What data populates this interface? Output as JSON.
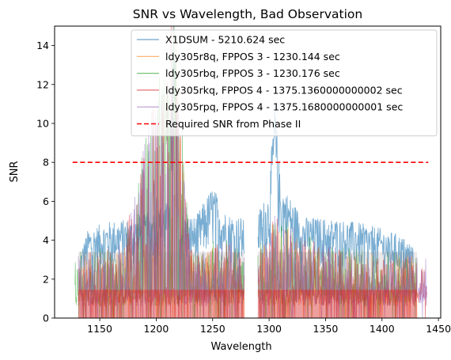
{
  "chart_data": {
    "type": "line",
    "title": "SNR vs Wavelength, Bad Observation",
    "xlabel": "Wavelength",
    "ylabel": "SNR",
    "xlim": [
      1110,
      1452
    ],
    "ylim": [
      0,
      15
    ],
    "xticks": [
      1150,
      1200,
      1250,
      1300,
      1350,
      1400,
      1450
    ],
    "yticks": [
      0,
      2,
      4,
      6,
      8,
      10,
      12,
      14
    ],
    "legend_position": "top-right",
    "gap": [
      1278,
      1290
    ],
    "series": [
      {
        "name": "X1DSUM - 5210.624 sec",
        "color": "#1f77b4",
        "x_range": [
          1133,
          1428
        ],
        "envelope": [
          [
            1133,
            3.5
          ],
          [
            1140,
            4.6
          ],
          [
            1160,
            5.0
          ],
          [
            1180,
            5.1
          ],
          [
            1200,
            5.6
          ],
          [
            1210,
            6.0
          ],
          [
            1216,
            15
          ],
          [
            1220,
            5.4
          ],
          [
            1235,
            5.2
          ],
          [
            1250,
            6.8
          ],
          [
            1262,
            5.4
          ],
          [
            1275,
            5.2
          ],
          [
            1278,
            5.0
          ],
          [
            1290,
            5.5
          ],
          [
            1300,
            6.5
          ],
          [
            1305,
            11.5
          ],
          [
            1310,
            7.0
          ],
          [
            1330,
            5.2
          ],
          [
            1360,
            5.1
          ],
          [
            1380,
            4.9
          ],
          [
            1400,
            4.6
          ],
          [
            1415,
            4.3
          ],
          [
            1428,
            3.8
          ]
        ]
      },
      {
        "name": "ldy305r8q, FPPOS 3 - 1230.144 sec",
        "color": "#ff7f0e",
        "x_range": [
          1131,
          1431
        ],
        "envelope": [
          [
            1131,
            3.0
          ],
          [
            1170,
            3.4
          ],
          [
            1215,
            3.6
          ],
          [
            1216,
            15
          ],
          [
            1230,
            3.5
          ],
          [
            1270,
            3.4
          ],
          [
            1278,
            3.0
          ],
          [
            1290,
            3.2
          ],
          [
            1305,
            4.8
          ],
          [
            1350,
            3.3
          ],
          [
            1431,
            3.0
          ]
        ]
      },
      {
        "name": "ldy305rbq, FPPOS 3 - 1230.176 sec",
        "color": "#2ca02c",
        "x_range": [
          1128,
          1431
        ],
        "envelope": [
          [
            1128,
            3.2
          ],
          [
            1170,
            3.6
          ],
          [
            1216,
            15
          ],
          [
            1230,
            3.7
          ],
          [
            1270,
            3.8
          ],
          [
            1278,
            3.2
          ],
          [
            1290,
            3.4
          ],
          [
            1305,
            5.0
          ],
          [
            1350,
            3.5
          ],
          [
            1431,
            3.1
          ]
        ]
      },
      {
        "name": "ldy305rkq, FPPOS 4 - 1375.1360000000002 sec",
        "color": "#d62728",
        "x_range": [
          1131,
          1440
        ],
        "envelope": [
          [
            1131,
            3.1
          ],
          [
            1170,
            3.5
          ],
          [
            1216,
            15
          ],
          [
            1230,
            3.6
          ],
          [
            1270,
            3.6
          ],
          [
            1278,
            3.1
          ],
          [
            1290,
            3.3
          ],
          [
            1305,
            4.9
          ],
          [
            1350,
            3.4
          ],
          [
            1440,
            2.8
          ]
        ]
      },
      {
        "name": "ldy305rpq, FPPOS 4 - 1375.1680000000001 sec",
        "color": "#9467bd",
        "x_range": [
          1131,
          1440
        ],
        "envelope": [
          [
            1131,
            3.3
          ],
          [
            1170,
            3.6
          ],
          [
            1216,
            15
          ],
          [
            1230,
            3.7
          ],
          [
            1270,
            3.7
          ],
          [
            1278,
            3.2
          ],
          [
            1290,
            3.4
          ],
          [
            1305,
            5.0
          ],
          [
            1350,
            3.5
          ],
          [
            1440,
            2.9
          ]
        ]
      }
    ],
    "reference_line": {
      "name": "Required SNR from Phase II",
      "color": "#ff0000",
      "y": 8,
      "x_range": [
        1126,
        1441
      ],
      "style": "dashed"
    }
  }
}
